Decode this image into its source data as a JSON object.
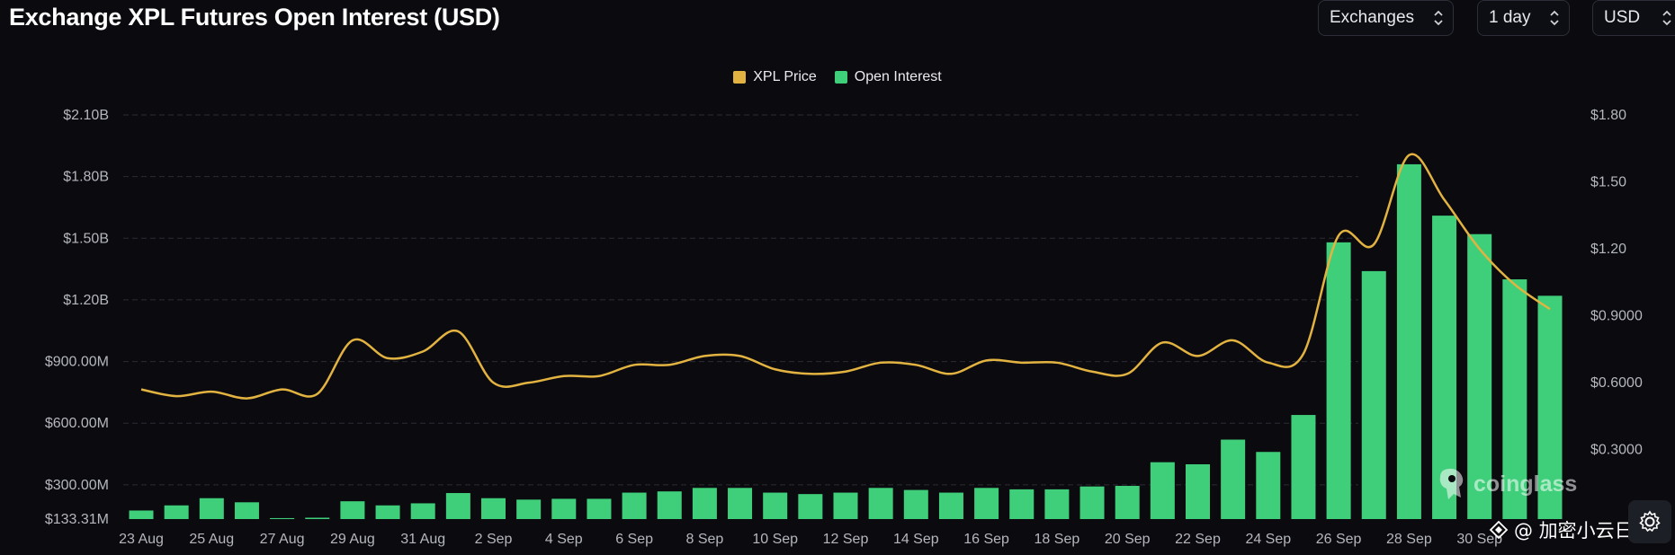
{
  "header": {
    "title": "Exchange XPL Futures Open Interest (USD)",
    "selects": {
      "exchanges": "Exchanges",
      "interval": "1 day",
      "currency": "USD"
    }
  },
  "colors": {
    "price": "#e3b341",
    "open_interest": "#3fcf7a",
    "grid": "#2a2d35",
    "background": "#0a0a0f"
  },
  "watermark": {
    "text": "coinglass",
    "icon": "coinglass-logo-icon"
  },
  "overlay": {
    "text": "@ 加密小云日记",
    "icon": "share-icon"
  },
  "settings": {
    "icon": "gear-icon"
  },
  "chart_data": {
    "type": "bar",
    "title": "Exchange XPL Futures Open Interest (USD)",
    "legend": [
      "XPL Price",
      "Open Interest"
    ],
    "legend_position": "top-center",
    "grid": true,
    "y_left": {
      "ticks": [
        "$133.31M",
        "$300.00M",
        "$600.00M",
        "$900.00M",
        "$1.20B",
        "$1.50B",
        "$1.80B",
        "$2.10B"
      ],
      "tick_values": [
        133.31,
        300,
        600,
        900,
        1200,
        1500,
        1800,
        2100
      ],
      "range": [
        133.31,
        2100
      ]
    },
    "y_right": {
      "ticks": [
        "$0.3000",
        "$0.6000",
        "$0.9000",
        "$1.20",
        "$1.50",
        "$1.80"
      ],
      "tick_values": [
        0.3,
        0.6,
        0.9,
        1.2,
        1.5,
        1.8
      ],
      "range": [
        -0.011,
        1.8
      ]
    },
    "x_ticks": [
      "23 Aug",
      "25 Aug",
      "27 Aug",
      "29 Aug",
      "31 Aug",
      "2 Sep",
      "4 Sep",
      "6 Sep",
      "8 Sep",
      "10 Sep",
      "12 Sep",
      "14 Sep",
      "16 Sep",
      "18 Sep",
      "20 Sep",
      "22 Sep",
      "24 Sep",
      "26 Sep",
      "28 Sep",
      "30 Sep"
    ],
    "categories": [
      "23 Aug",
      "24 Aug",
      "25 Aug",
      "26 Aug",
      "27 Aug",
      "28 Aug",
      "29 Aug",
      "30 Aug",
      "31 Aug",
      "1 Sep",
      "2 Sep",
      "3 Sep",
      "4 Sep",
      "5 Sep",
      "6 Sep",
      "7 Sep",
      "8 Sep",
      "9 Sep",
      "10 Sep",
      "11 Sep",
      "12 Sep",
      "13 Sep",
      "14 Sep",
      "15 Sep",
      "16 Sep",
      "17 Sep",
      "18 Sep",
      "19 Sep",
      "20 Sep",
      "21 Sep",
      "22 Sep",
      "23 Sep",
      "24 Sep",
      "25 Sep",
      "26 Sep",
      "27 Sep",
      "28 Sep",
      "29 Sep",
      "30 Sep",
      "1 Oct",
      "2 Oct"
    ],
    "series": [
      {
        "name": "Open Interest",
        "type": "bar",
        "axis": "left",
        "unit": "USD millions",
        "values": [
          175,
          200,
          235,
          215,
          138,
          140,
          220,
          200,
          210,
          260,
          235,
          228,
          232,
          232,
          262,
          268,
          285,
          285,
          262,
          255,
          262,
          285,
          275,
          262,
          285,
          278,
          278,
          292,
          295,
          410,
          400,
          520,
          460,
          640,
          1480,
          1340,
          1860,
          1610,
          1520,
          1300,
          1220
        ]
      },
      {
        "name": "XPL Price",
        "type": "line",
        "axis": "right",
        "unit": "USD",
        "values": [
          0.57,
          0.54,
          0.56,
          0.53,
          0.57,
          0.55,
          0.79,
          0.71,
          0.74,
          0.83,
          0.6,
          0.6,
          0.63,
          0.63,
          0.68,
          0.68,
          0.72,
          0.72,
          0.66,
          0.64,
          0.65,
          0.69,
          0.68,
          0.64,
          0.7,
          0.69,
          0.69,
          0.65,
          0.64,
          0.78,
          0.72,
          0.79,
          0.69,
          0.73,
          1.26,
          1.22,
          1.62,
          1.42,
          1.2,
          1.04,
          0.93
        ]
      }
    ]
  }
}
